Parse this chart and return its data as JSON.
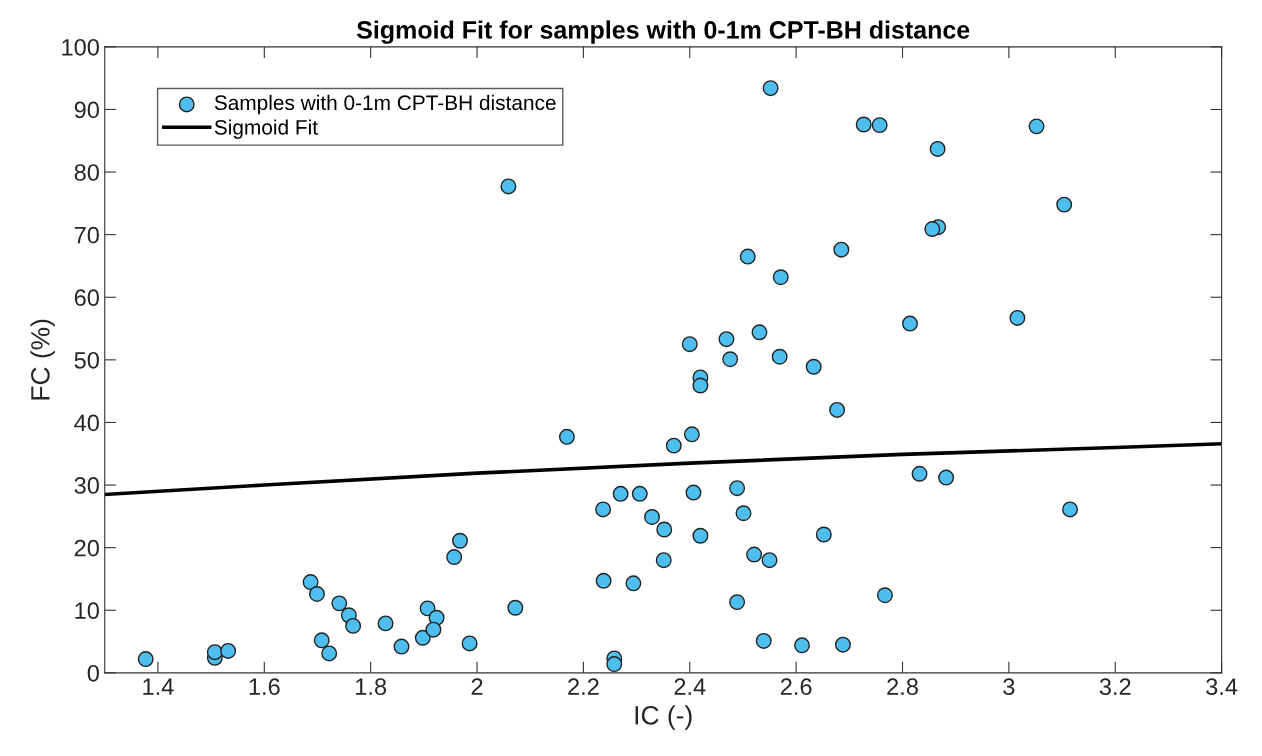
{
  "chart_data": {
    "type": "scatter",
    "title": "Sigmoid Fit for samples with 0-1m CPT-BH distance",
    "xlabel": "IC (-)",
    "ylabel": "FC (%)",
    "xlim": [
      1.3,
      3.4
    ],
    "xticks": [
      1.4,
      1.6,
      1.8,
      2,
      2.2,
      2.4,
      2.6,
      2.8,
      3,
      3.2,
      3.4
    ],
    "ylim": [
      0,
      100
    ],
    "yticks": [
      0,
      10,
      20,
      30,
      40,
      50,
      60,
      70,
      80,
      90,
      100
    ],
    "grid": false,
    "legend": "top left",
    "marker": "circle",
    "series": [
      {
        "name": "Samples with 0-1m CPT-BH distance",
        "color": "#4dbeee",
        "x": [
          1.377,
          1.507,
          1.507,
          1.532,
          1.687,
          1.699,
          1.708,
          1.722,
          1.741,
          1.759,
          1.767,
          1.828,
          1.858,
          1.898,
          1.907,
          1.924,
          1.918,
          1.986,
          1.957,
          1.968,
          2.072,
          2.677,
          2.169,
          2.37,
          2.404,
          2.27,
          2.306,
          2.237,
          2.407,
          2.489,
          2.501,
          2.329,
          2.352,
          2.42,
          2.652,
          2.521,
          2.55,
          2.351,
          2.238,
          2.294,
          2.489,
          2.767,
          2.539,
          2.611,
          2.688,
          2.258,
          2.258,
          2.832,
          2.882,
          3.115,
          2.552,
          2.727,
          2.757,
          2.059,
          2.685,
          2.509,
          2.571,
          2.4,
          2.469,
          2.531,
          2.476,
          2.569,
          2.633,
          2.42,
          2.42,
          3.052,
          2.866,
          3.104,
          2.867,
          2.856,
          2.814,
          3.016
        ],
        "values": [
          2.2,
          2.4,
          3.3,
          3.5,
          14.5,
          12.6,
          5.2,
          3.1,
          11.1,
          9.2,
          7.5,
          7.9,
          4.2,
          5.6,
          10.3,
          8.8,
          6.9,
          4.7,
          18.5,
          21.1,
          10.4,
          42.0,
          37.7,
          36.3,
          38.1,
          28.6,
          28.6,
          26.1,
          28.8,
          29.5,
          25.5,
          24.9,
          22.9,
          21.9,
          22.1,
          18.9,
          18.0,
          18.0,
          14.7,
          14.3,
          11.3,
          12.4,
          5.1,
          4.4,
          4.5,
          2.3,
          1.4,
          31.8,
          31.2,
          26.1,
          93.4,
          87.6,
          87.5,
          77.7,
          67.6,
          66.5,
          63.2,
          52.5,
          53.3,
          54.4,
          50.1,
          50.5,
          48.9,
          47.2,
          45.9,
          87.3,
          83.7,
          74.8,
          71.2,
          70.9,
          55.8,
          56.7
        ]
      },
      {
        "name": "Sigmoid Fit",
        "type": "line",
        "color": "#000000",
        "marker": "none",
        "line_style": "solid",
        "x": [
          1.3,
          1.6,
          2.0,
          2.4,
          2.8,
          3.2,
          3.4
        ],
        "values": [
          28.5,
          30.0,
          31.9,
          33.5,
          34.9,
          36.0,
          36.6
        ]
      }
    ]
  }
}
